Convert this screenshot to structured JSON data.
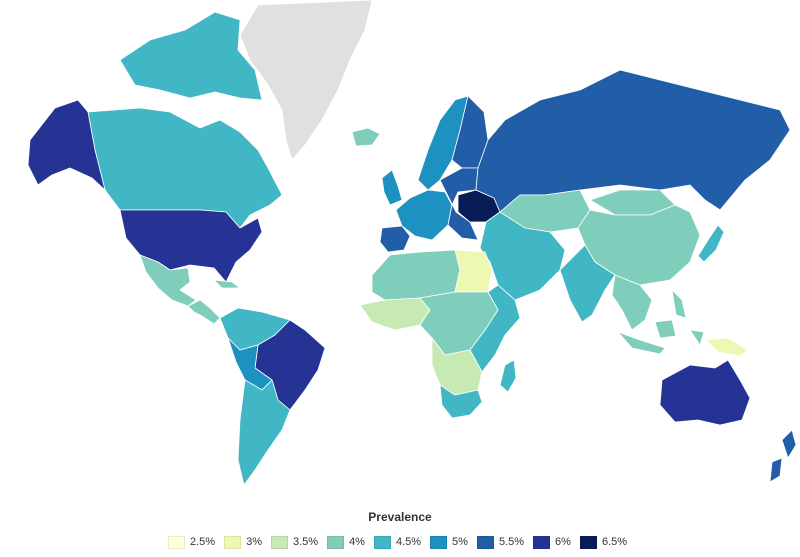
{
  "legend": {
    "title": "Prevalence",
    "items": [
      {
        "label": "2.5%",
        "color": "#ffffd9"
      },
      {
        "label": "3%",
        "color": "#edf8b1"
      },
      {
        "label": "3.5%",
        "color": "#c7e9b4"
      },
      {
        "label": "4%",
        "color": "#7fcdbb"
      },
      {
        "label": "4.5%",
        "color": "#41b6c4"
      },
      {
        "label": "5%",
        "color": "#1d91c0"
      },
      {
        "label": "5.5%",
        "color": "#225ea8"
      },
      {
        "label": "6%",
        "color": "#253494"
      },
      {
        "label": "6.5%",
        "color": "#081d58"
      }
    ]
  },
  "no_data_color": "#e0e0e0",
  "regions": [
    {
      "id": "greenland",
      "band": "no-data"
    },
    {
      "id": "canada",
      "band": "4.5%"
    },
    {
      "id": "canadian-arctic",
      "band": "4.5%"
    },
    {
      "id": "alaska",
      "band": "6%"
    },
    {
      "id": "united-states",
      "band": "6%"
    },
    {
      "id": "mexico",
      "band": "4%"
    },
    {
      "id": "central-america",
      "band": "4%"
    },
    {
      "id": "colombia-venezuela",
      "band": "4.5%"
    },
    {
      "id": "brazil",
      "band": "6%"
    },
    {
      "id": "peru-bolivia",
      "band": "5%"
    },
    {
      "id": "argentina-chile",
      "band": "4.5%"
    },
    {
      "id": "iceland",
      "band": "4%"
    },
    {
      "id": "scandinavia",
      "band": "5%"
    },
    {
      "id": "finland",
      "band": "5.5%"
    },
    {
      "id": "uk",
      "band": "5%"
    },
    {
      "id": "western-europe",
      "band": "5%"
    },
    {
      "id": "iberia",
      "band": "5.5%"
    },
    {
      "id": "eastern-europe",
      "band": "5.5%"
    },
    {
      "id": "ukraine",
      "band": "6.5%"
    },
    {
      "id": "russia",
      "band": "5.5%"
    },
    {
      "id": "kazakhstan",
      "band": "4%"
    },
    {
      "id": "china",
      "band": "4%"
    },
    {
      "id": "mongolia",
      "band": "4%"
    },
    {
      "id": "japan",
      "band": "4.5%"
    },
    {
      "id": "middle-east",
      "band": "4.5%"
    },
    {
      "id": "india",
      "band": "4.5%"
    },
    {
      "id": "southeast-asia",
      "band": "4%"
    },
    {
      "id": "indonesia",
      "band": "4%"
    },
    {
      "id": "papua-new-guinea",
      "band": "3%"
    },
    {
      "id": "north-africa",
      "band": "4%"
    },
    {
      "id": "egypt",
      "band": "3%"
    },
    {
      "id": "west-africa",
      "band": "3.5%"
    },
    {
      "id": "central-africa",
      "band": "4%"
    },
    {
      "id": "east-africa",
      "band": "4.5%"
    },
    {
      "id": "southern-africa",
      "band": "3.5%"
    },
    {
      "id": "south-africa",
      "band": "4.5%"
    },
    {
      "id": "madagascar",
      "band": "4.5%"
    },
    {
      "id": "australia",
      "band": "6%"
    },
    {
      "id": "new-zealand",
      "band": "5.5%"
    }
  ]
}
